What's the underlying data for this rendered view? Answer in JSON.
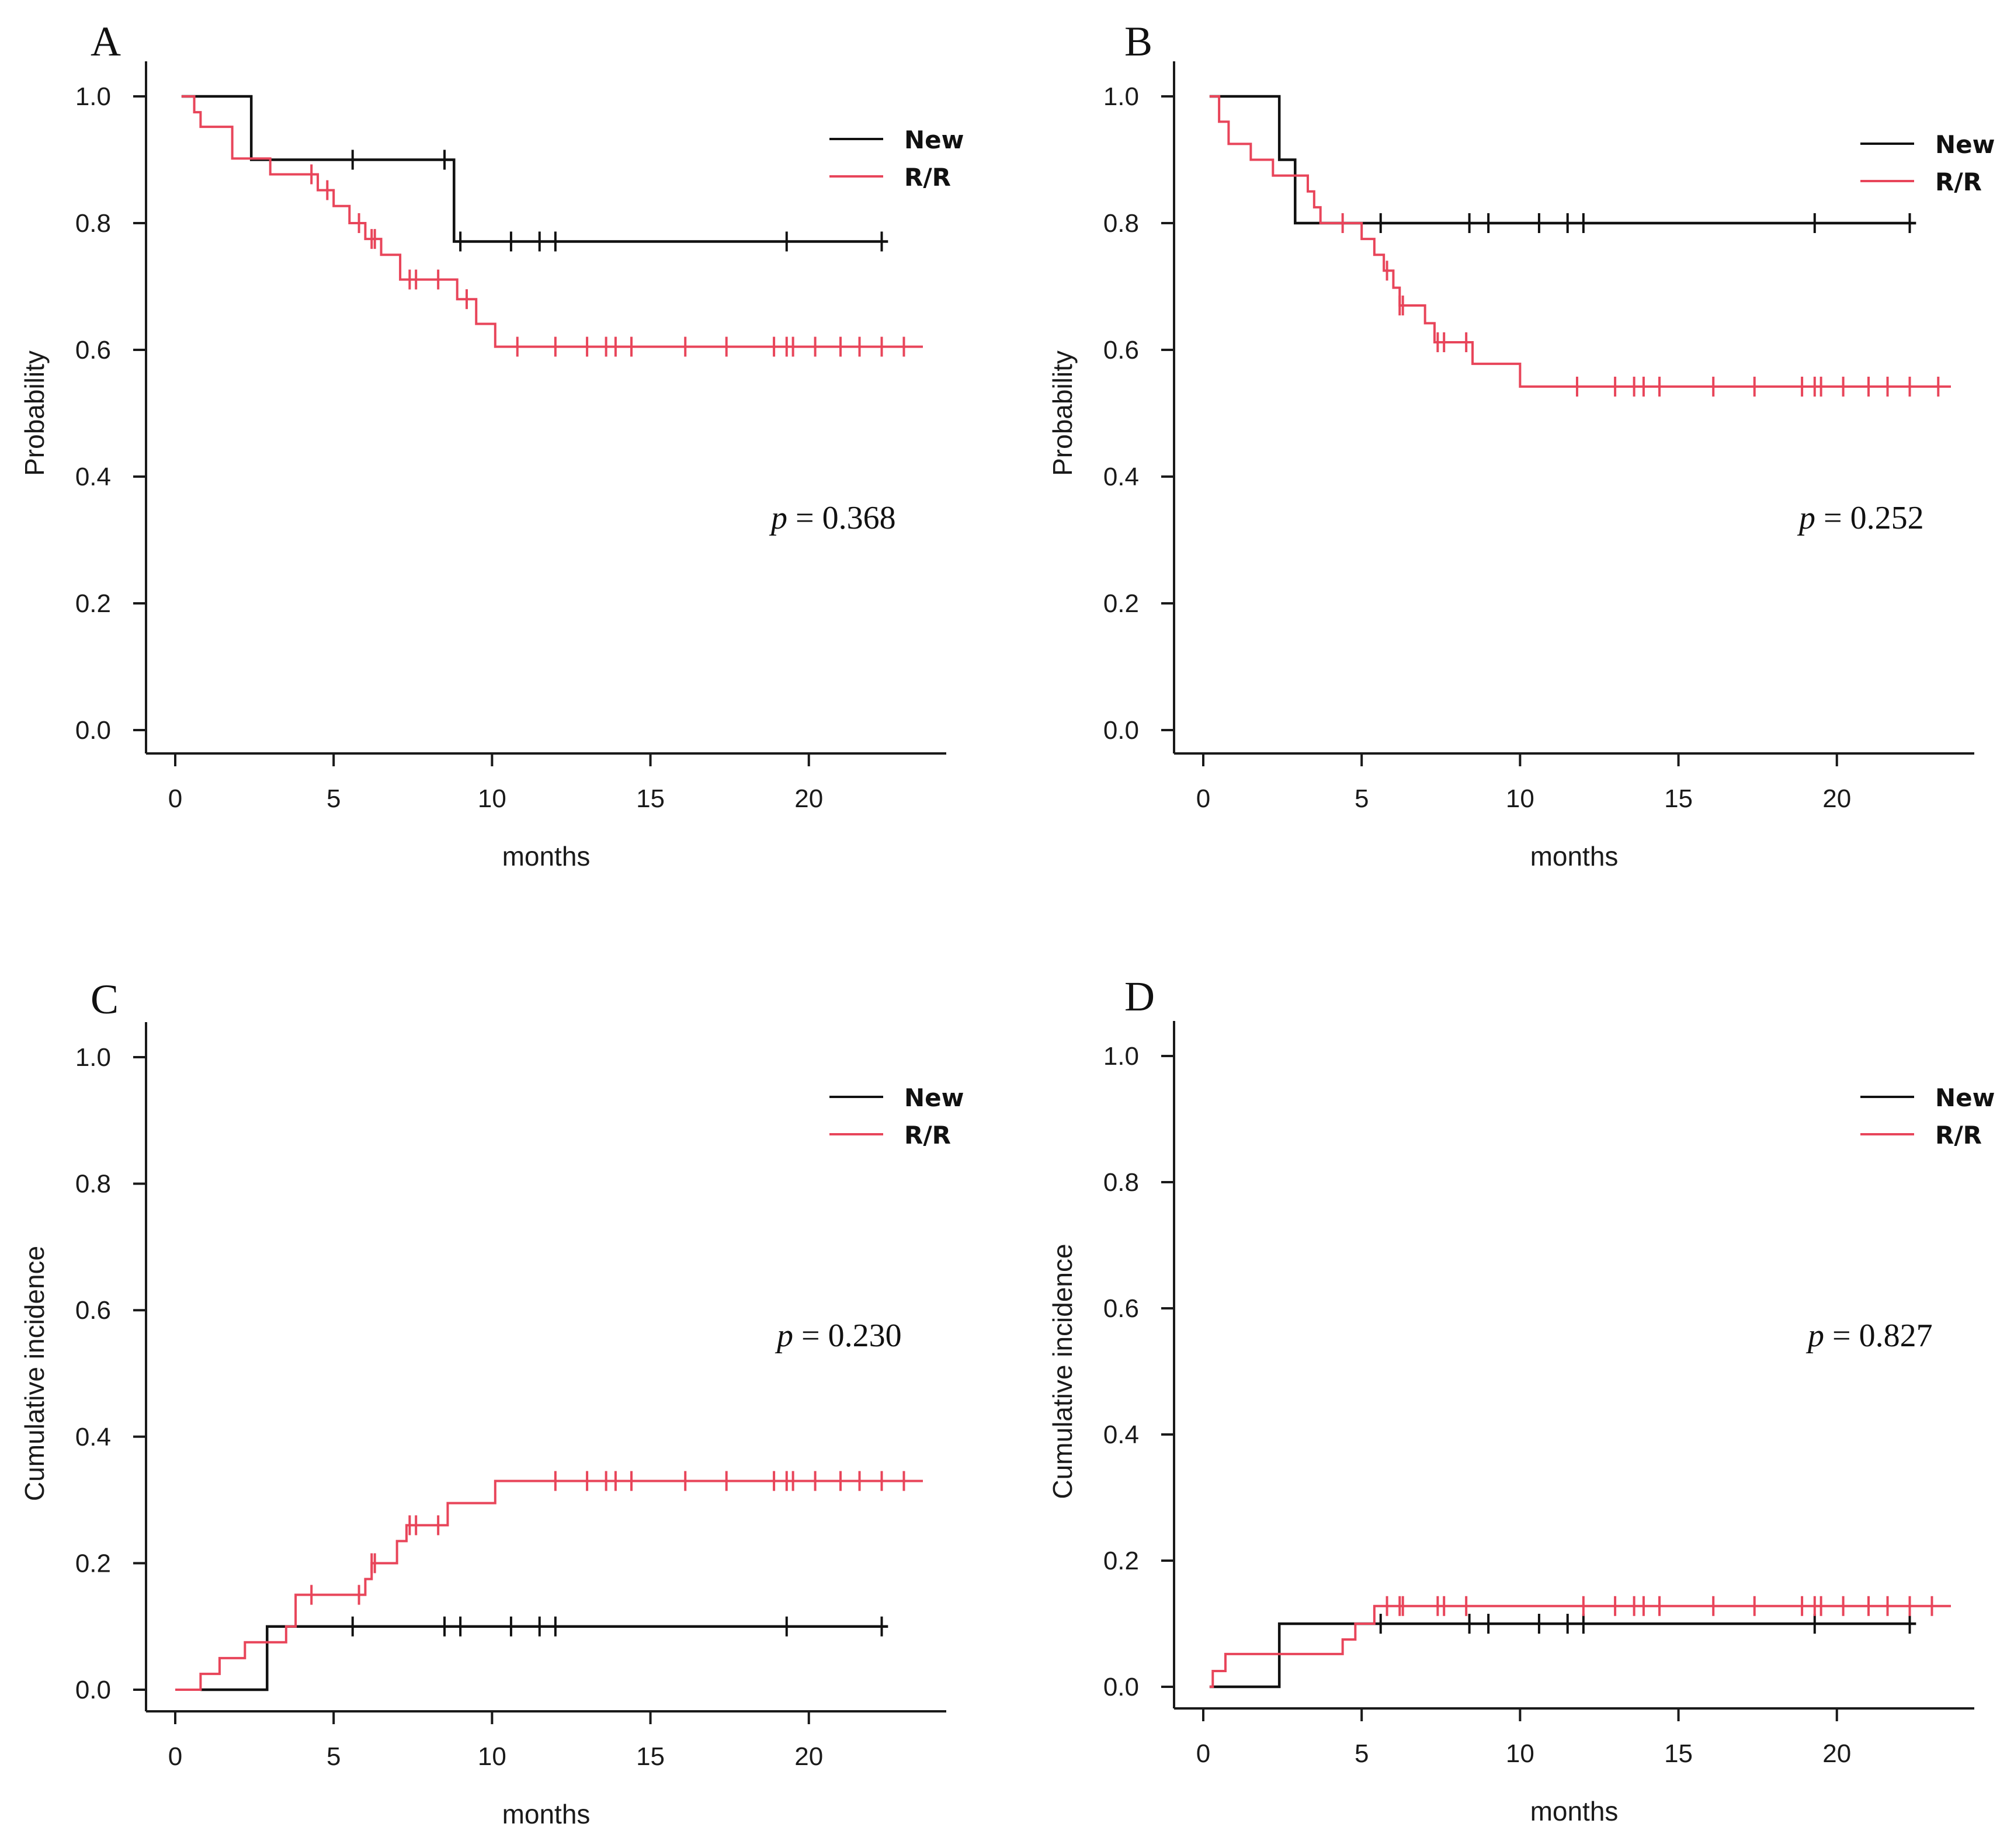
{
  "colors": {
    "new": "#111111",
    "rr": "#e8455a",
    "axis": "#1a1a1a"
  },
  "chart_data": [
    {
      "type": "line",
      "panel": "A",
      "xlabel": "months",
      "ylabel": "Probability",
      "xlim": [
        -1,
        24
      ],
      "ylim": [
        0,
        1
      ],
      "xticks": [
        0,
        5,
        10,
        15,
        20
      ],
      "xtick_labels": [
        "0",
        "5",
        "10",
        "15",
        "20"
      ],
      "yticks": [
        0,
        0.2,
        0.4,
        0.6,
        0.8,
        1.0
      ],
      "ytick_labels": [
        "0.0",
        "0.2",
        "0.4",
        "0.6",
        "0.8",
        "1.0"
      ],
      "legend": {
        "placement": "top-right",
        "entries": [
          "New",
          "R/R"
        ]
      },
      "p_value": {
        "p": "p",
        "text": " = 0.368"
      },
      "series": [
        {
          "name": "New",
          "steps": [
            [
              0.2,
              1.0
            ],
            [
              2.4,
              0.9
            ],
            [
              8.8,
              0.771
            ],
            [
              22.5,
              0.771
            ]
          ],
          "censored": [
            5.6,
            8.5,
            9.0,
            10.6,
            11.5,
            12.0,
            19.3,
            22.3
          ]
        },
        {
          "name": "R/R",
          "steps": [
            [
              0.2,
              1.0
            ],
            [
              0.6,
              0.975
            ],
            [
              0.8,
              0.952
            ],
            [
              1.8,
              0.902
            ],
            [
              3.0,
              0.877
            ],
            [
              4.5,
              0.852
            ],
            [
              5.0,
              0.827
            ],
            [
              5.5,
              0.8
            ],
            [
              6.0,
              0.775
            ],
            [
              6.5,
              0.75
            ],
            [
              7.1,
              0.711
            ],
            [
              8.9,
              0.68
            ],
            [
              9.5,
              0.641
            ],
            [
              10.1,
              0.605
            ],
            [
              23.6,
              0.605
            ]
          ],
          "censored": [
            4.3,
            4.8,
            5.8,
            6.2,
            6.3,
            7.4,
            7.6,
            8.3,
            9.2,
            10.8,
            12.0,
            13.0,
            13.6,
            13.9,
            14.4,
            16.1,
            17.4,
            18.9,
            19.3,
            19.5,
            20.2,
            21.0,
            21.6,
            22.3,
            23.0
          ]
        }
      ]
    },
    {
      "type": "line",
      "panel": "B",
      "xlabel": "months",
      "ylabel": "Probability",
      "xlim": [
        -1,
        24
      ],
      "ylim": [
        0,
        1
      ],
      "xticks": [
        0,
        5,
        10,
        15,
        20
      ],
      "xtick_labels": [
        "0",
        "5",
        "10",
        "15",
        "20"
      ],
      "yticks": [
        0,
        0.2,
        0.4,
        0.6,
        0.8,
        1.0
      ],
      "ytick_labels": [
        "0.0",
        "0.2",
        "0.4",
        "0.6",
        "0.8",
        "1.0"
      ],
      "legend": {
        "placement": "top-right",
        "entries": [
          "New",
          "R/R"
        ]
      },
      "p_value": {
        "p": "p",
        "text": " = 0.252"
      },
      "series": [
        {
          "name": "New",
          "steps": [
            [
              0.2,
              1.0
            ],
            [
              2.4,
              0.9
            ],
            [
              2.9,
              0.8
            ],
            [
              22.5,
              0.8
            ]
          ],
          "censored": [
            5.6,
            8.4,
            9.0,
            10.6,
            11.5,
            12.0,
            19.3,
            22.3
          ]
        },
        {
          "name": "R/R",
          "steps": [
            [
              0.2,
              1.0
            ],
            [
              0.5,
              0.96
            ],
            [
              0.8,
              0.925
            ],
            [
              1.5,
              0.9
            ],
            [
              2.2,
              0.875
            ],
            [
              3.3,
              0.85
            ],
            [
              3.5,
              0.825
            ],
            [
              3.7,
              0.8
            ],
            [
              5.0,
              0.775
            ],
            [
              5.4,
              0.75
            ],
            [
              5.7,
              0.725
            ],
            [
              6.0,
              0.698
            ],
            [
              6.2,
              0.67
            ],
            [
              7.0,
              0.642
            ],
            [
              7.3,
              0.612
            ],
            [
              8.5,
              0.578
            ],
            [
              10.0,
              0.542
            ],
            [
              23.6,
              0.542
            ]
          ],
          "censored": [
            4.4,
            5.8,
            6.2,
            6.3,
            7.4,
            7.6,
            8.3,
            11.8,
            13.0,
            13.6,
            13.9,
            14.4,
            16.1,
            17.4,
            18.9,
            19.3,
            19.5,
            20.2,
            21.0,
            21.6,
            22.3,
            23.2
          ]
        }
      ]
    },
    {
      "type": "line",
      "panel": "C",
      "xlabel": "months",
      "ylabel": "Cumulative incidence",
      "xlim": [
        -1,
        24
      ],
      "ylim": [
        0,
        1
      ],
      "xticks": [
        0,
        5,
        10,
        15,
        20
      ],
      "xtick_labels": [
        "0",
        "5",
        "10",
        "15",
        "20"
      ],
      "yticks": [
        0,
        0.2,
        0.4,
        0.6,
        0.8,
        1.0
      ],
      "ytick_labels": [
        "0.0",
        "0.2",
        "0.4",
        "0.6",
        "0.8",
        "1.0"
      ],
      "legend": {
        "placement": "top-right",
        "entries": [
          "New",
          "R/R"
        ]
      },
      "p_value": {
        "p": "p",
        "text": " = 0.230"
      },
      "series": [
        {
          "name": "New",
          "steps": [
            [
              0.8,
              0.0
            ],
            [
              2.9,
              0.1
            ],
            [
              22.5,
              0.1
            ]
          ],
          "censored": [
            5.6,
            8.5,
            9.0,
            10.6,
            11.5,
            12.0,
            19.3,
            22.3
          ]
        },
        {
          "name": "R/R",
          "steps": [
            [
              0.0,
              0.0
            ],
            [
              0.8,
              0.025
            ],
            [
              1.4,
              0.05
            ],
            [
              2.2,
              0.075
            ],
            [
              3.5,
              0.1
            ],
            [
              3.8,
              0.15
            ],
            [
              6.0,
              0.175
            ],
            [
              6.2,
              0.2
            ],
            [
              7.0,
              0.235
            ],
            [
              7.3,
              0.26
            ],
            [
              8.6,
              0.295
            ],
            [
              10.1,
              0.33
            ],
            [
              23.6,
              0.33
            ]
          ],
          "censored": [
            4.3,
            5.8,
            6.2,
            6.3,
            7.4,
            7.6,
            8.3,
            12.0,
            13.0,
            13.6,
            13.9,
            14.4,
            16.1,
            17.4,
            18.9,
            19.3,
            19.5,
            20.2,
            21.0,
            21.6,
            22.3,
            23.0
          ]
        }
      ]
    },
    {
      "type": "line",
      "panel": "D",
      "xlabel": "months",
      "ylabel": "Cumulative incidence",
      "xlim": [
        -1,
        24
      ],
      "ylim": [
        0,
        1
      ],
      "xticks": [
        0,
        5,
        10,
        15,
        20
      ],
      "xtick_labels": [
        "0",
        "5",
        "10",
        "15",
        "20"
      ],
      "yticks": [
        0,
        0.2,
        0.4,
        0.6,
        0.8,
        1.0
      ],
      "ytick_labels": [
        "0.0",
        "0.2",
        "0.4",
        "0.6",
        "0.8",
        "1.0"
      ],
      "legend": {
        "placement": "top-right",
        "entries": [
          "New",
          "R/R"
        ]
      },
      "p_value": {
        "p": "p",
        "text": " = 0.827"
      },
      "series": [
        {
          "name": "New",
          "steps": [
            [
              0.2,
              0.0
            ],
            [
              2.4,
              0.1
            ],
            [
              22.5,
              0.1
            ]
          ],
          "censored": [
            5.6,
            8.4,
            9.0,
            10.6,
            11.5,
            12.0,
            19.3,
            22.3
          ]
        },
        {
          "name": "R/R",
          "steps": [
            [
              0.2,
              0.0
            ],
            [
              0.3,
              0.025
            ],
            [
              0.7,
              0.052
            ],
            [
              4.4,
              0.075
            ],
            [
              4.8,
              0.1
            ],
            [
              5.4,
              0.128
            ],
            [
              23.6,
              0.128
            ]
          ],
          "censored": [
            5.8,
            6.2,
            6.3,
            7.4,
            7.6,
            8.3,
            12.0,
            13.0,
            13.6,
            13.9,
            14.4,
            16.1,
            17.4,
            18.9,
            19.3,
            19.5,
            20.2,
            21.0,
            21.6,
            22.3,
            23.0
          ]
        }
      ]
    }
  ]
}
